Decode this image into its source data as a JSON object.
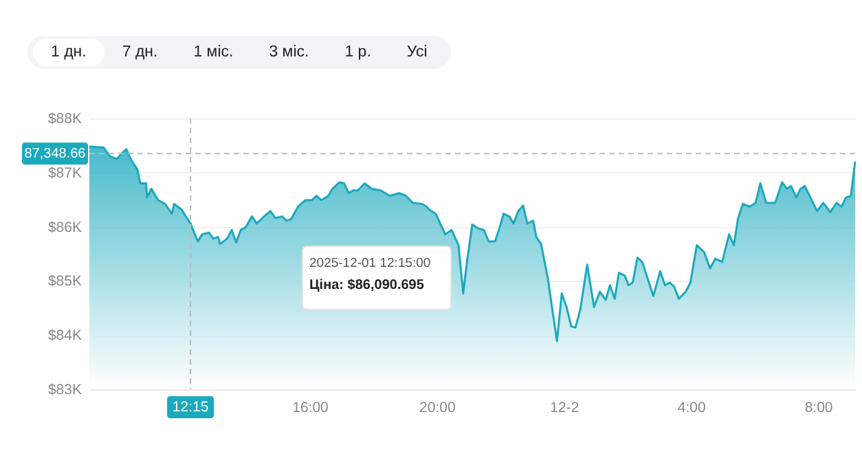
{
  "chart_data": {
    "type": "area",
    "x": [
      "2025-12-01T09:04",
      "2025-12-01T09:31",
      "2025-12-01T09:43",
      "2025-12-01T09:56",
      "2025-12-01T10:08",
      "2025-12-01T10:14",
      "2025-12-01T10:22",
      "2025-12-01T10:35",
      "2025-12-01T10:40",
      "2025-12-01T10:51",
      "2025-12-01T10:53",
      "2025-12-01T11:01",
      "2025-12-01T11:14",
      "2025-12-01T11:27",
      "2025-12-01T11:40",
      "2025-12-01T11:44",
      "2025-12-01T11:58",
      "2025-12-01T12:06",
      "2025-12-01T12:15",
      "2025-12-01T12:23",
      "2025-12-01T12:29",
      "2025-12-01T12:37",
      "2025-12-01T12:50",
      "2025-12-01T12:58",
      "2025-12-01T13:07",
      "2025-12-01T13:11",
      "2025-12-01T13:24",
      "2025-12-01T13:33",
      "2025-12-01T13:41",
      "2025-12-01T13:50",
      "2025-12-01T13:59",
      "2025-12-01T14:11",
      "2025-12-01T14:20",
      "2025-12-01T14:34",
      "2025-12-01T14:46",
      "2025-12-01T14:55",
      "2025-12-01T15:08",
      "2025-12-01T15:17",
      "2025-12-01T15:25",
      "2025-12-01T15:38",
      "2025-12-01T15:52",
      "2025-12-01T16:04",
      "2025-12-01T16:13",
      "2025-12-01T16:22",
      "2025-12-01T16:35",
      "2025-12-01T16:43",
      "2025-12-01T16:56",
      "2025-12-01T17:05",
      "2025-12-01T17:14",
      "2025-12-01T17:22",
      "2025-12-01T17:31",
      "2025-12-01T17:44",
      "2025-12-01T17:57",
      "2025-12-01T18:14",
      "2025-12-01T18:31",
      "2025-12-01T18:49",
      "2025-12-01T19:02",
      "2025-12-01T19:15",
      "2025-12-01T19:32",
      "2025-12-01T19:41",
      "2025-12-01T19:45",
      "2025-12-01T19:58",
      "2025-12-01T20:16",
      "2025-12-01T20:28",
      "2025-12-01T20:41",
      "2025-12-01T20:50",
      "2025-12-01T20:57",
      "2025-12-01T21:07",
      "2025-12-01T21:20",
      "2025-12-01T21:29",
      "2025-12-01T21:38",
      "2025-12-01T21:50",
      "2025-12-01T21:59",
      "2025-12-01T22:06",
      "2025-12-01T22:17",
      "2025-12-01T22:25",
      "2025-12-01T22:34",
      "2025-12-01T22:43",
      "2025-12-01T22:51",
      "2025-12-01T23:02",
      "2025-12-01T23:08",
      "2025-12-01T23:17",
      "2025-12-01T23:30",
      "2025-12-01T23:39",
      "2025-12-01T23:47",
      "2025-12-01T23:56",
      "2025-12-02T00:05",
      "2025-12-02T00:14",
      "2025-12-02T00:22",
      "2025-12-02T00:31",
      "2025-12-02T00:44",
      "2025-12-02T00:57",
      "2025-12-02T01:08",
      "2025-12-02T01:19",
      "2025-12-02T01:27",
      "2025-12-02T01:36",
      "2025-12-02T01:44",
      "2025-12-02T01:55",
      "2025-12-02T02:02",
      "2025-12-02T02:10",
      "2025-12-02T02:19",
      "2025-12-02T02:28",
      "2025-12-02T02:38",
      "2025-12-02T02:49",
      "2025-12-02T03:02",
      "2025-12-02T03:11",
      "2025-12-02T03:20",
      "2025-12-02T03:28",
      "2025-12-02T03:37",
      "2025-12-02T03:50",
      "2025-12-02T03:59",
      "2025-12-02T04:11",
      "2025-12-02T04:25",
      "2025-12-02T04:36",
      "2025-12-02T04:46",
      "2025-12-02T04:59",
      "2025-12-02T05:12",
      "2025-12-02T05:21",
      "2025-12-02T05:29",
      "2025-12-02T05:38",
      "2025-12-02T05:51",
      "2025-12-02T06:02",
      "2025-12-02T06:11",
      "2025-12-02T06:22",
      "2025-12-02T06:39",
      "2025-12-02T06:52",
      "2025-12-02T07:01",
      "2025-12-02T07:09",
      "2025-12-02T07:19",
      "2025-12-02T07:27",
      "2025-12-02T07:35",
      "2025-12-02T07:48",
      "2025-12-02T07:58",
      "2025-12-02T08:10",
      "2025-12-02T08:23",
      "2025-12-02T08:35",
      "2025-12-02T08:44",
      "2025-12-02T08:53",
      "2025-12-02T09:02",
      "2025-12-02T09:10"
    ],
    "series": [
      {
        "color": "#1ba9bd",
        "values": [
          87480,
          87460,
          87300,
          87250,
          87380,
          87430,
          87250,
          87050,
          86800,
          86800,
          86540,
          86700,
          86490,
          86420,
          86240,
          86420,
          86320,
          86190,
          86060,
          85860,
          85730,
          85860,
          85890,
          85780,
          85810,
          85680,
          85780,
          85940,
          85710,
          85940,
          85990,
          86190,
          86060,
          86190,
          86290,
          86160,
          86190,
          86110,
          86140,
          86370,
          86490,
          86490,
          86570,
          86490,
          86570,
          86700,
          86820,
          86800,
          86620,
          86670,
          86670,
          86800,
          86700,
          86670,
          86570,
          86620,
          86570,
          86440,
          86420,
          86370,
          86320,
          86240,
          85860,
          85940,
          85660,
          84770,
          85350,
          86040,
          85960,
          85940,
          85730,
          85730,
          85990,
          86240,
          86190,
          86060,
          86290,
          86390,
          86060,
          86110,
          85810,
          85680,
          85030,
          84420,
          83890,
          84770,
          84520,
          84160,
          84140,
          84470,
          85300,
          84520,
          84800,
          84650,
          84920,
          84670,
          85150,
          85100,
          84920,
          84970,
          85430,
          85350,
          85050,
          84720,
          85180,
          84920,
          84970,
          84900,
          84670,
          84800,
          84970,
          85660,
          85530,
          85230,
          85410,
          85350,
          85860,
          85660,
          86160,
          86420,
          86370,
          86440,
          86800,
          86440,
          86440,
          86820,
          86700,
          86750,
          86540,
          86700,
          86750,
          86490,
          86290,
          86440,
          86270,
          86440,
          86370,
          86540,
          86570,
          87200
        ]
      }
    ],
    "xlim": [
      "2025-12-01T09:04",
      "2025-12-02T09:10"
    ],
    "xticks": [
      {
        "value": "2025-12-01T16:00",
        "label": "16:00"
      },
      {
        "value": "2025-12-01T20:00",
        "label": "20:00"
      },
      {
        "value": "2025-12-02T00:00",
        "label": "12-2"
      },
      {
        "value": "2025-12-02T04:00",
        "label": "4:00"
      },
      {
        "value": "2025-12-02T08:00",
        "label": "8:00"
      }
    ],
    "ylim": [
      83000,
      88000
    ],
    "yticks": [
      {
        "value": 83000,
        "label": "$83K"
      },
      {
        "value": 84000,
        "label": "$84K"
      },
      {
        "value": 85000,
        "label": "$85K"
      },
      {
        "value": 86000,
        "label": "$86K"
      },
      {
        "value": 87000,
        "label": "$87K"
      },
      {
        "value": 88000,
        "label": "$88K"
      }
    ],
    "grid": "y",
    "ref_lines": [
      {
        "axis": "y",
        "value": 87348.66,
        "label": "87,348.66",
        "color": "#bbbbbb",
        "line_style": "dashed"
      },
      {
        "axis": "x",
        "value": "2025-12-01T12:15",
        "label": "12:15",
        "color": "#bbbbbb",
        "line_style": "dashed"
      }
    ],
    "annotations": [
      "1 дн.",
      "7 дн.",
      "1 міс.",
      "3 міс.",
      "1 р.",
      "Усі",
      "2025-12-01 12:15:00",
      "Ціна: $86,090.695"
    ]
  }
}
